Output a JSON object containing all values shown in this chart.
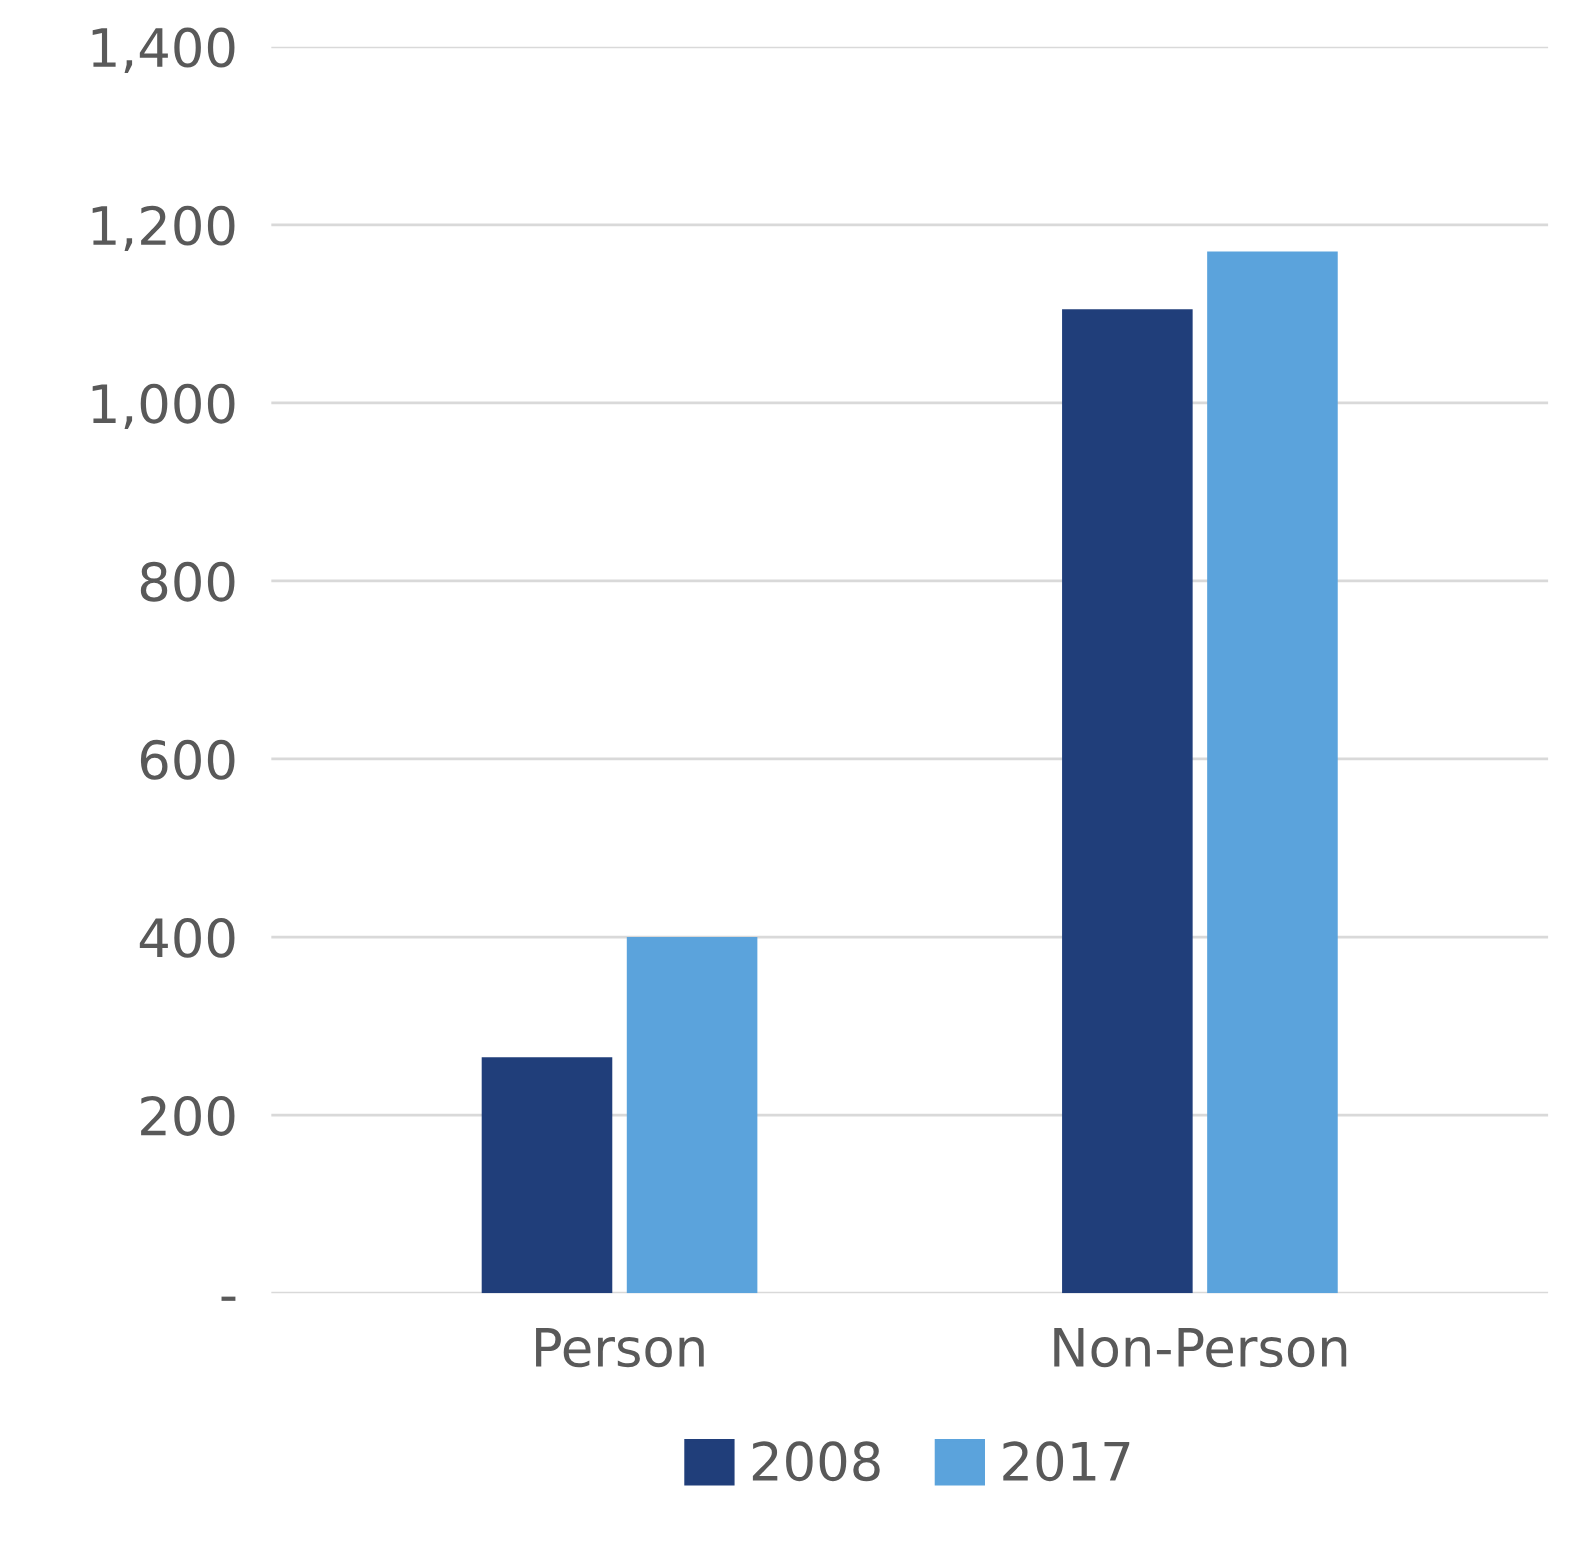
{
  "chart_data": {
    "type": "bar",
    "categories": [
      "Person",
      "Non-Person"
    ],
    "series": [
      {
        "name": "2008",
        "color": "#203e7a",
        "values": [
          265,
          1105
        ]
      },
      {
        "name": "2017",
        "color": "#5ba3dc",
        "values": [
          400,
          1170
        ]
      }
    ],
    "ylim": [
      0,
      1400
    ],
    "yticks": [
      {
        "value": 0,
        "label": "-"
      },
      {
        "value": 200,
        "label": "200"
      },
      {
        "value": 400,
        "label": "400"
      },
      {
        "value": 600,
        "label": "600"
      },
      {
        "value": 800,
        "label": "800"
      },
      {
        "value": 1000,
        "label": "1,000"
      },
      {
        "value": 1200,
        "label": "1,200"
      },
      {
        "value": 1400,
        "label": "1,400"
      }
    ],
    "grid": "y",
    "legend": "bottom"
  }
}
